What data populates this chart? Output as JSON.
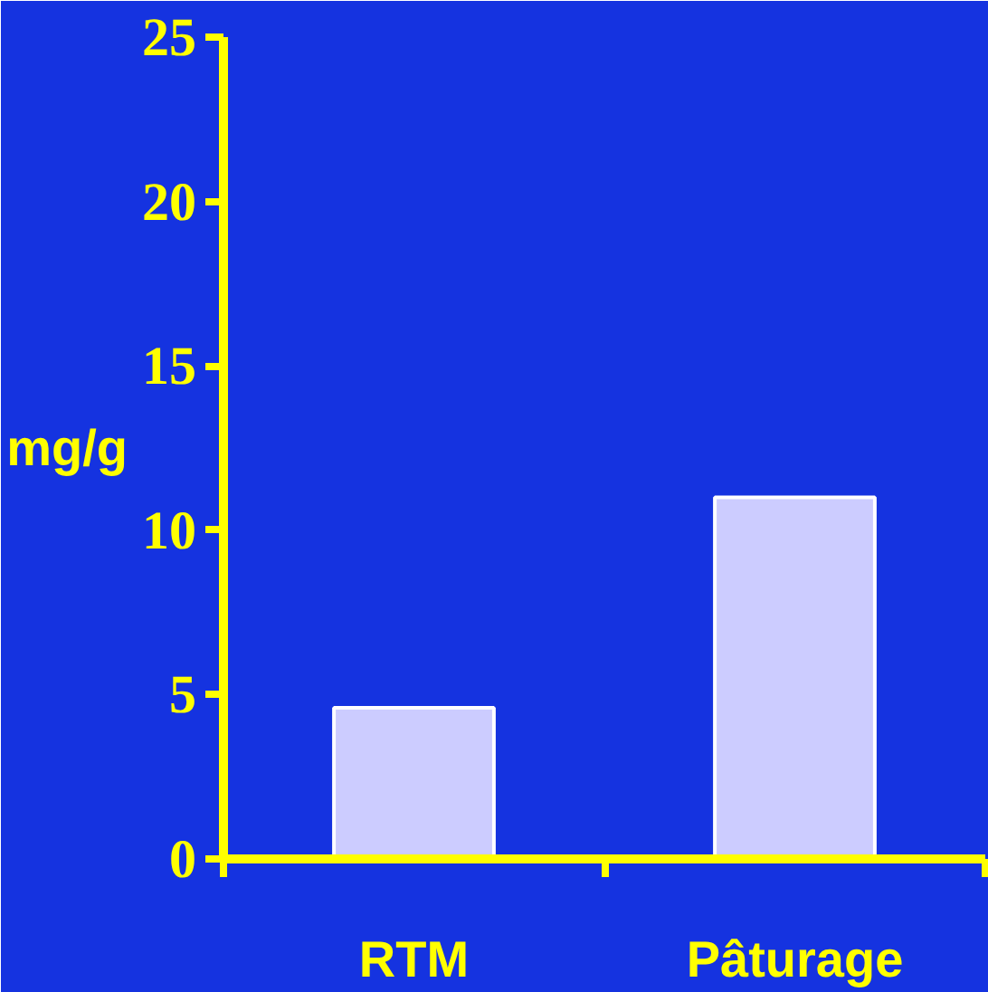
{
  "chart_data": {
    "type": "bar",
    "ylabel": "mg/g",
    "categories": [
      "RTM",
      "Pâturage"
    ],
    "values": [
      4.6,
      11
    ],
    "color": "#ccccff",
    "ylim": [
      0,
      25
    ],
    "yticks": [
      0,
      5,
      10,
      15,
      20,
      25
    ],
    "grid": false
  }
}
